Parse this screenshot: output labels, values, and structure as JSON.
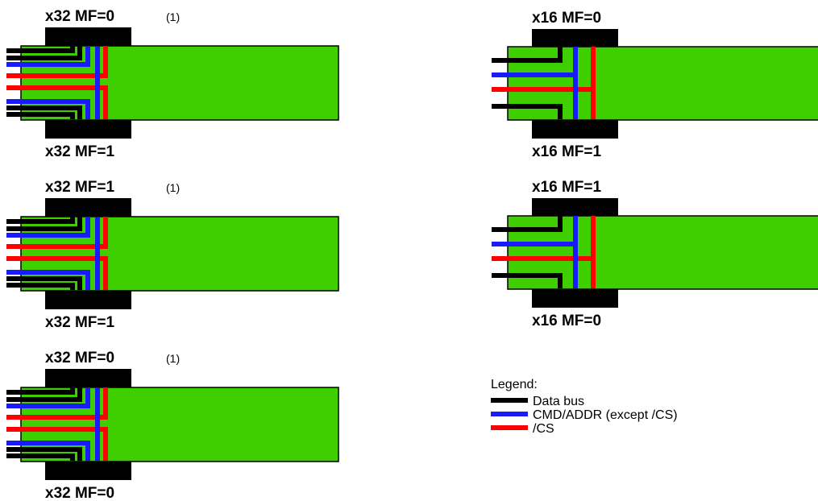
{
  "colors": {
    "board": "#3fcf00",
    "chip": "#000000",
    "data_bus": "#000000",
    "cmd_addr": "#1a1aff",
    "cs": "#ff0000"
  },
  "diagrams": [
    {
      "top_label": "x32 MF=0",
      "bottom_label": "x32 MF=1",
      "note": "(1)",
      "width": "x32"
    },
    {
      "top_label": "x16 MF=0",
      "bottom_label": "x16 MF=1",
      "note": "",
      "width": "x16"
    },
    {
      "top_label": "x32 MF=1",
      "bottom_label": "x32 MF=1",
      "note": "(1)",
      "width": "x32"
    },
    {
      "top_label": "x16 MF=1",
      "bottom_label": "x16 MF=0",
      "note": "",
      "width": "x16"
    },
    {
      "top_label": "x32 MF=0",
      "bottom_label": "x32 MF=0",
      "note": "(1)",
      "width": "x32"
    }
  ],
  "legend": {
    "title": "Legend:",
    "items": [
      {
        "label": "Data bus",
        "icon": "data-bus-swatch"
      },
      {
        "label": "CMD/ADDR (except /CS)",
        "icon": "cmd-addr-swatch"
      },
      {
        "label": "/CS",
        "icon": "cs-swatch"
      }
    ]
  }
}
